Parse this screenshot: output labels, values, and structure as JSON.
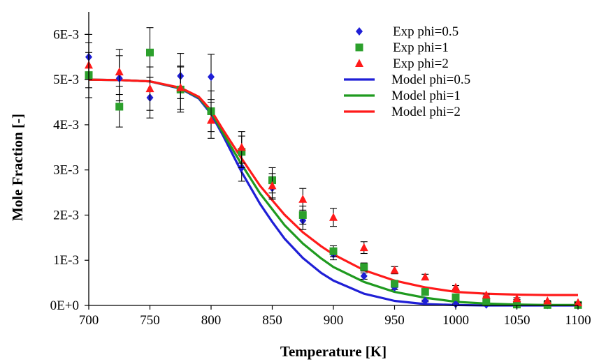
{
  "chart_data": {
    "type": "scatter",
    "title": "",
    "xlabel": "Temperature [K]",
    "ylabel": "Mole Fraction [-]",
    "xlim": [
      700,
      1100
    ],
    "ylim": [
      0,
      0.0065
    ],
    "x_ticks": [
      700,
      750,
      800,
      850,
      900,
      950,
      1000,
      1050,
      1100
    ],
    "y_ticks": [
      {
        "value": 0,
        "label": "0E+0"
      },
      {
        "value": 0.001,
        "label": "1E-3"
      },
      {
        "value": 0.002,
        "label": "2E-3"
      },
      {
        "value": 0.003,
        "label": "3E-3"
      },
      {
        "value": 0.004,
        "label": "4E-3"
      },
      {
        "value": 0.005,
        "label": "5E-3"
      },
      {
        "value": 0.006,
        "label": "6E-3"
      }
    ],
    "grid": false,
    "legend_position": "top-right",
    "series": [
      {
        "name": "Exp phi=0.5",
        "kind": "scatter",
        "marker": "diamond",
        "color": "#1f1fd6",
        "x": [
          700,
          725,
          750,
          775,
          800,
          825,
          850,
          875,
          900,
          925,
          950,
          975,
          1000,
          1025,
          1050,
          1075,
          1100
        ],
        "y": [
          0.0055,
          0.00503,
          0.0046,
          0.00508,
          0.00506,
          0.00305,
          0.0026,
          0.00188,
          0.00113,
          0.00065,
          0.0004,
          0.0001,
          3e-05,
          2e-05,
          1e-05,
          1e-05,
          1e-05
        ],
        "err": [
          0.0005,
          0.0005,
          0.00045,
          0.0005,
          0.0005,
          0.0003,
          0.00025,
          0.0002,
          0.00012,
          7e-05,
          5e-05,
          2e-05,
          1e-05,
          1e-05,
          1e-05,
          1e-05,
          1e-05
        ]
      },
      {
        "name": "Exp phi=1",
        "kind": "scatter",
        "marker": "square",
        "color": "#2ca02c",
        "x": [
          700,
          725,
          750,
          775,
          800,
          825,
          850,
          875,
          900,
          925,
          950,
          975,
          1000,
          1025,
          1050,
          1075,
          1100
        ],
        "y": [
          0.0051,
          0.0044,
          0.0056,
          0.00478,
          0.0043,
          0.0034,
          0.00277,
          0.002,
          0.0012,
          0.00085,
          0.00048,
          0.0003,
          0.00018,
          7e-05,
          2e-05,
          1e-05,
          1e-05
        ],
        "err": [
          0.0005,
          0.00045,
          0.00055,
          0.0005,
          0.00045,
          0.00035,
          0.00028,
          0.0002,
          0.00012,
          9e-05,
          5e-05,
          3e-05,
          2e-05,
          1e-05,
          1e-05,
          1e-05,
          1e-05
        ]
      },
      {
        "name": "Exp phi=2",
        "kind": "scatter",
        "marker": "triangle",
        "color": "#ff1a1a",
        "x": [
          700,
          725,
          750,
          775,
          800,
          825,
          850,
          875,
          900,
          925,
          950,
          975,
          1000,
          1025,
          1050,
          1075,
          1100
        ],
        "y": [
          0.00532,
          0.00517,
          0.0048,
          0.00482,
          0.0041,
          0.0035,
          0.00265,
          0.00235,
          0.00195,
          0.00128,
          0.00078,
          0.00063,
          0.0004,
          0.00023,
          0.00015,
          0.0001,
          6e-05
        ],
        "err": [
          0.0005,
          0.0005,
          0.00048,
          0.00048,
          0.0004,
          0.00035,
          0.00027,
          0.00024,
          0.0002,
          0.00013,
          8e-05,
          6e-05,
          4e-05,
          2e-05,
          2e-05,
          1e-05,
          1e-05
        ]
      },
      {
        "name": "Model phi=0.5",
        "kind": "line",
        "color": "#1f1fd6",
        "x": [
          700,
          725,
          750,
          775,
          790,
          800,
          810,
          825,
          840,
          850,
          860,
          875,
          890,
          900,
          925,
          950,
          975,
          1000,
          1025,
          1050,
          1075,
          1100
        ],
        "y": [
          0.005,
          0.00499,
          0.00496,
          0.0048,
          0.00458,
          0.00424,
          0.00375,
          0.00295,
          0.00225,
          0.00185,
          0.00148,
          0.00105,
          0.00072,
          0.00055,
          0.00026,
          0.0001,
          3e-05,
          1e-05,
          0,
          0,
          0,
          0
        ]
      },
      {
        "name": "Model phi=1",
        "kind": "line",
        "color": "#1f9a1f",
        "x": [
          700,
          725,
          750,
          775,
          790,
          800,
          810,
          825,
          840,
          850,
          860,
          875,
          890,
          900,
          925,
          950,
          975,
          1000,
          1025,
          1050,
          1075,
          1100
        ],
        "y": [
          0.005,
          0.00499,
          0.00496,
          0.00481,
          0.0046,
          0.00428,
          0.0038,
          0.00312,
          0.00248,
          0.00213,
          0.00178,
          0.00137,
          0.00104,
          0.00085,
          0.00052,
          0.0003,
          0.00017,
          8e-05,
          4e-05,
          2e-05,
          1e-05,
          1e-05
        ]
      },
      {
        "name": "Model phi=2",
        "kind": "line",
        "color": "#ff1a1a",
        "x": [
          700,
          725,
          750,
          775,
          790,
          800,
          810,
          825,
          840,
          850,
          860,
          875,
          890,
          900,
          925,
          950,
          975,
          1000,
          1025,
          1050,
          1075,
          1100
        ],
        "y": [
          0.005,
          0.00499,
          0.00496,
          0.00482,
          0.00462,
          0.00432,
          0.00388,
          0.00325,
          0.00265,
          0.00233,
          0.00201,
          0.00162,
          0.00131,
          0.00113,
          0.00078,
          0.00055,
          0.0004,
          0.0003,
          0.00026,
          0.00024,
          0.00023,
          0.00023
        ]
      }
    ]
  }
}
